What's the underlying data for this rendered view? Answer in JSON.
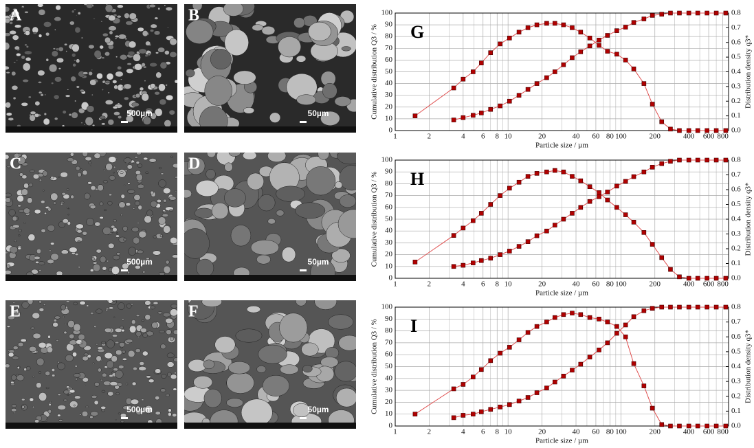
{
  "panels": [
    {
      "label": "A",
      "scale_bar": "500µm"
    },
    {
      "label": "B",
      "scale_bar": "50µm"
    },
    {
      "label": "C",
      "scale_bar": "500µm"
    },
    {
      "label": "D",
      "scale_bar": "50µm"
    },
    {
      "label": "E",
      "scale_bar": "500µm"
    },
    {
      "label": "F",
      "scale_bar": "50µm"
    }
  ],
  "chart_data": [
    {
      "type": "line",
      "label": "G",
      "log_x": true,
      "grid": true,
      "xlabel": "Particle size / µm",
      "ylabel": "Cumulative distribution Q3 / %",
      "y2label": "Distribution density q3*",
      "xlim": [
        1,
        900
      ],
      "xticks": [
        1,
        2,
        4,
        6,
        8,
        10,
        20,
        40,
        60,
        80,
        100,
        200,
        400,
        600,
        800
      ],
      "minor_xticks": [
        3,
        5,
        7,
        9,
        30,
        50,
        70,
        90,
        300,
        500,
        700,
        900
      ],
      "ylim": [
        0,
        100
      ],
      "yticks": [
        0,
        10,
        20,
        30,
        40,
        50,
        60,
        70,
        80,
        90,
        100
      ],
      "y2lim": [
        0,
        0.8
      ],
      "y2ticks": [
        {
          "value": 0,
          "label": "0.0"
        },
        0.1,
        0.2,
        0.3,
        0.4,
        0.5,
        0.6,
        0.7,
        0.8
      ],
      "x": [
        1.5,
        3.3,
        4,
        4.9,
        5.8,
        7,
        8.5,
        10.3,
        12.5,
        15,
        18,
        22,
        26,
        31,
        37,
        44,
        53,
        64,
        76,
        92,
        110,
        130,
        160,
        190,
        230,
        275,
        330,
        400,
        480,
        580,
        700,
        850
      ],
      "series": [
        {
          "color": "#e05050",
          "marker_color": "#b00000",
          "axis": "y2",
          "values": [
            0.1,
            0.29,
            0.35,
            0.4,
            0.46,
            0.53,
            0.59,
            0.63,
            0.67,
            0.7,
            0.72,
            0.73,
            0.73,
            0.72,
            0.7,
            0.67,
            0.63,
            0.58,
            0.54,
            0.52,
            0.48,
            0.42,
            0.32,
            0.18,
            0.06,
            0.01,
            0,
            0,
            0,
            0,
            0,
            0
          ]
        },
        {
          "color": "#e05050",
          "marker_color": "#b00000",
          "axis": "y",
          "values": [
            null,
            9,
            11,
            13,
            15,
            18,
            21,
            25,
            30,
            35,
            40,
            45,
            50,
            56,
            62,
            67,
            72,
            77,
            81,
            85,
            88,
            92,
            95,
            98,
            99,
            100,
            100,
            100,
            100,
            100,
            100,
            100
          ]
        }
      ]
    },
    {
      "type": "line",
      "label": "H",
      "log_x": true,
      "grid": true,
      "xlabel": "Particle size / µm",
      "ylabel": "Cumulative distribution Q3 / %",
      "y2label": "Distribution density q3*",
      "xlim": [
        1,
        900
      ],
      "xticks": [
        1,
        2,
        4,
        6,
        8,
        10,
        20,
        40,
        60,
        80,
        100,
        200,
        400,
        600,
        800
      ],
      "minor_xticks": [
        3,
        5,
        7,
        9,
        30,
        50,
        70,
        90,
        300,
        500,
        700,
        900
      ],
      "ylim": [
        0,
        100
      ],
      "yticks": [
        0,
        10,
        20,
        30,
        40,
        50,
        60,
        70,
        80,
        90,
        100
      ],
      "y2lim": [
        0,
        0.8
      ],
      "y2ticks": [
        {
          "value": 0,
          "label": "0.0"
        },
        0.1,
        0.2,
        0.3,
        0.4,
        0.5,
        0.6,
        0.7,
        0.8
      ],
      "x": [
        1.5,
        3.3,
        4,
        4.9,
        5.8,
        7,
        8.5,
        10.3,
        12.5,
        15,
        18,
        22,
        26,
        31,
        37,
        44,
        53,
        64,
        76,
        92,
        110,
        130,
        160,
        190,
        230,
        275,
        330,
        400,
        480,
        580,
        700,
        850
      ],
      "series": [
        {
          "color": "#e05050",
          "marker_color": "#b00000",
          "axis": "y2",
          "values": [
            0.11,
            0.29,
            0.34,
            0.39,
            0.44,
            0.5,
            0.56,
            0.61,
            0.65,
            0.69,
            0.71,
            0.72,
            0.73,
            0.72,
            0.69,
            0.66,
            0.62,
            0.58,
            0.53,
            0.48,
            0.43,
            0.38,
            0.31,
            0.23,
            0.14,
            0.06,
            0.01,
            0,
            0,
            0,
            0,
            0
          ]
        },
        {
          "color": "#e05050",
          "marker_color": "#b00000",
          "axis": "y",
          "values": [
            null,
            10,
            11,
            13,
            15,
            17,
            20,
            23,
            27,
            31,
            36,
            40,
            45,
            50,
            55,
            60,
            65,
            69,
            73,
            78,
            82,
            86,
            90,
            94,
            97,
            99,
            100,
            100,
            100,
            100,
            100,
            100
          ]
        }
      ]
    },
    {
      "type": "line",
      "label": "I",
      "log_x": true,
      "grid": true,
      "xlabel": "Particle size / µm",
      "ylabel": "Cumulative distribution Q3 / %",
      "y2label": "Distribution density q3*",
      "xlim": [
        1,
        900
      ],
      "xticks": [
        1,
        2,
        4,
        6,
        8,
        10,
        20,
        40,
        60,
        80,
        100,
        200,
        400,
        600,
        800
      ],
      "minor_xticks": [
        3,
        5,
        7,
        9,
        30,
        50,
        70,
        90,
        300,
        500,
        700,
        900
      ],
      "ylim": [
        0,
        100
      ],
      "yticks": [
        0,
        10,
        20,
        30,
        40,
        50,
        60,
        70,
        80,
        90,
        100
      ],
      "y2lim": [
        0,
        0.8
      ],
      "y2ticks": [
        {
          "value": 0,
          "label": "0.0"
        },
        0.1,
        0.2,
        0.3,
        0.4,
        0.5,
        0.6,
        0.7,
        0.8
      ],
      "x": [
        1.5,
        3.3,
        4,
        4.9,
        5.8,
        7,
        8.5,
        10.3,
        12.5,
        15,
        18,
        22,
        26,
        31,
        37,
        44,
        53,
        64,
        76,
        92,
        110,
        130,
        160,
        190,
        230,
        275,
        330,
        400,
        480,
        580,
        700,
        850
      ],
      "series": [
        {
          "color": "#e05050",
          "marker_color": "#b00000",
          "axis": "y2",
          "values": [
            0.08,
            0.25,
            0.28,
            0.33,
            0.38,
            0.44,
            0.49,
            0.53,
            0.58,
            0.63,
            0.67,
            0.7,
            0.73,
            0.75,
            0.76,
            0.75,
            0.73,
            0.72,
            0.7,
            0.67,
            0.6,
            0.42,
            0.27,
            0.12,
            0.01,
            0,
            0,
            0,
            0,
            0,
            0,
            0
          ]
        },
        {
          "color": "#e05050",
          "marker_color": "#b00000",
          "axis": "y",
          "values": [
            null,
            7,
            9,
            10,
            12,
            14,
            16,
            18,
            21,
            24,
            28,
            32,
            37,
            42,
            47,
            52,
            58,
            64,
            70,
            78,
            85,
            92,
            97,
            99,
            100,
            100,
            100,
            100,
            100,
            100,
            100,
            100
          ]
        }
      ]
    }
  ]
}
